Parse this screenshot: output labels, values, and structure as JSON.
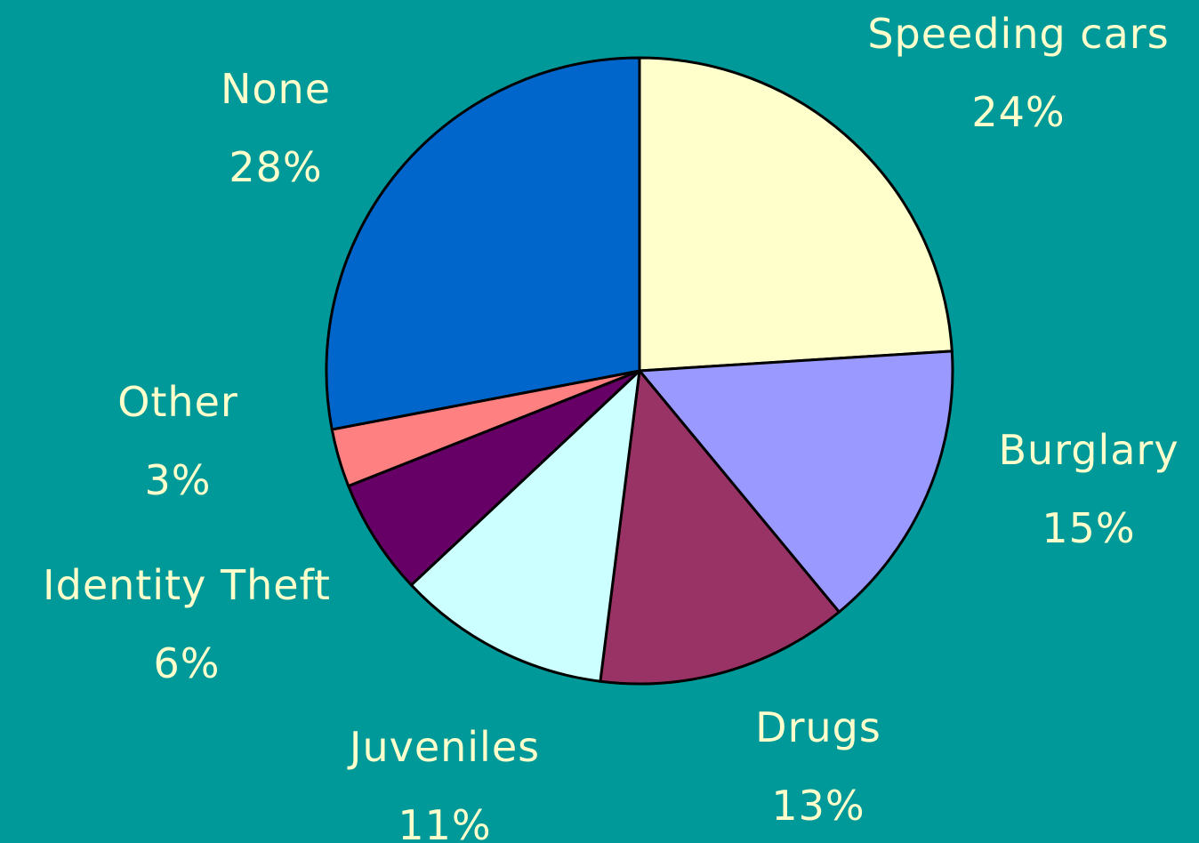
{
  "colors": {
    "background": "#009999",
    "label_text": "#FFFFCC",
    "slice_stroke": "#000000"
  },
  "chart_data": {
    "type": "pie",
    "title": "",
    "start_angle_deg": 0,
    "direction": "clockwise",
    "slices": [
      {
        "label": "Speeding cars",
        "value": 24,
        "display": "24%",
        "color": "#FFFFCC"
      },
      {
        "label": "Burglary",
        "value": 15,
        "display": "15%",
        "color": "#9999FF"
      },
      {
        "label": "Drugs",
        "value": 13,
        "display": "13%",
        "color": "#993366"
      },
      {
        "label": "Juveniles",
        "value": 11,
        "display": "11%",
        "color": "#CCFFFF"
      },
      {
        "label": "Identity Theft",
        "value": 6,
        "display": "6%",
        "color": "#660066"
      },
      {
        "label": "Other",
        "value": 3,
        "display": "3%",
        "color": "#FF8080"
      },
      {
        "label": "None",
        "value": 28,
        "display": "28%",
        "color": "#0066CC"
      }
    ]
  }
}
